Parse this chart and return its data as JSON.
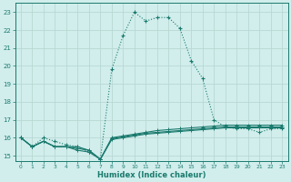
{
  "background_color": "#d1eeec",
  "grid_color": "#b8d8d4",
  "line_color": "#1a7a6e",
  "xlabel": "Humidex (Indice chaleur)",
  "xlim": [
    -0.5,
    23.5
  ],
  "ylim": [
    14.7,
    23.5
  ],
  "yticks": [
    15,
    16,
    17,
    18,
    19,
    20,
    21,
    22,
    23
  ],
  "xticks": [
    0,
    1,
    2,
    3,
    4,
    5,
    6,
    7,
    8,
    9,
    10,
    11,
    12,
    13,
    14,
    15,
    16,
    17,
    18,
    19,
    20,
    21,
    22,
    23
  ],
  "curve1_x": [
    0,
    1,
    2,
    3,
    4,
    5,
    6,
    7,
    8,
    9,
    10,
    11,
    12,
    13,
    14,
    15,
    16,
    17,
    18,
    19,
    20,
    21,
    22,
    23
  ],
  "curve1_y": [
    16.0,
    15.5,
    15.8,
    15.5,
    15.5,
    15.5,
    15.3,
    14.8,
    16.0,
    16.1,
    16.2,
    16.3,
    16.4,
    16.45,
    16.5,
    16.55,
    16.6,
    16.65,
    16.7,
    16.7,
    16.7,
    16.7,
    16.7,
    16.7
  ],
  "curve2_x": [
    0,
    1,
    2,
    3,
    4,
    5,
    6,
    7,
    8,
    9,
    10,
    11,
    12,
    13,
    14,
    15,
    16,
    17,
    18,
    19,
    20,
    21,
    22,
    23
  ],
  "curve2_y": [
    16.0,
    15.5,
    15.8,
    15.5,
    15.5,
    15.4,
    15.3,
    14.8,
    15.95,
    16.05,
    16.15,
    16.25,
    16.3,
    16.35,
    16.4,
    16.45,
    16.5,
    16.55,
    16.6,
    16.6,
    16.6,
    16.6,
    16.6,
    16.6
  ],
  "curve3_x": [
    0,
    1,
    2,
    3,
    4,
    5,
    6,
    7,
    8,
    9,
    10,
    11,
    12,
    13,
    14,
    15,
    16,
    17,
    18,
    19,
    20,
    21,
    22,
    23
  ],
  "curve3_y": [
    16.0,
    15.5,
    15.8,
    15.5,
    15.5,
    15.3,
    15.2,
    14.8,
    15.9,
    16.0,
    16.1,
    16.2,
    16.25,
    16.3,
    16.35,
    16.4,
    16.45,
    16.5,
    16.55,
    16.55,
    16.55,
    16.55,
    16.55,
    16.55
  ],
  "curve_main_x": [
    0,
    1,
    2,
    3,
    4,
    5,
    6,
    7,
    8,
    9,
    10,
    11,
    12,
    13,
    14,
    15,
    16,
    17,
    18,
    19,
    20,
    21,
    22,
    23
  ],
  "curve_main_y": [
    16.0,
    15.5,
    16.0,
    15.8,
    15.6,
    15.5,
    15.2,
    14.8,
    19.8,
    21.7,
    23.0,
    22.5,
    22.7,
    22.7,
    22.1,
    20.3,
    19.3,
    17.0,
    16.6,
    16.5,
    16.5,
    16.3,
    16.5,
    16.5
  ]
}
